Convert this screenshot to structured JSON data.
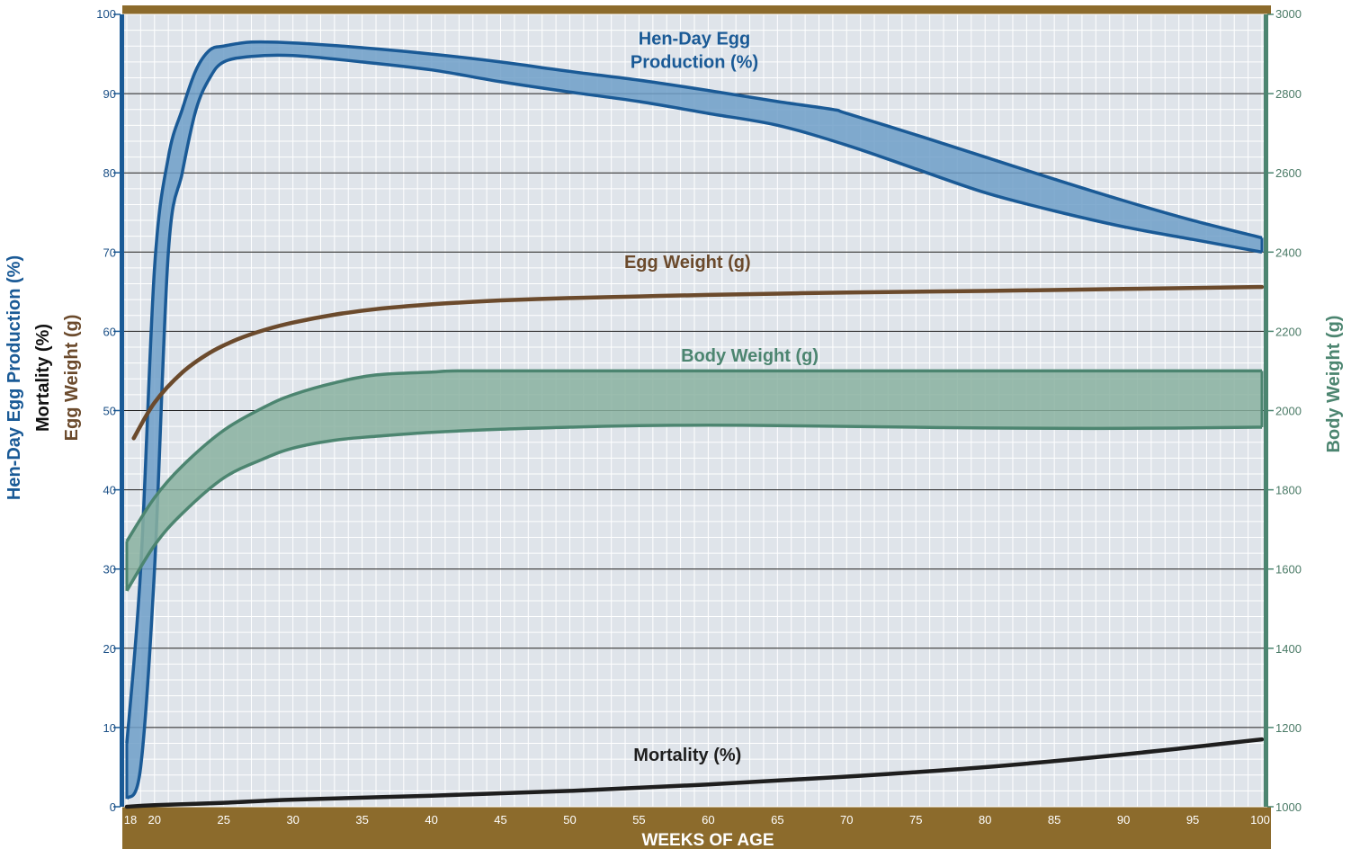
{
  "chart_data": {
    "type": "line",
    "x_range": [
      18,
      100
    ],
    "x_ticks": [
      18,
      20,
      25,
      30,
      35,
      40,
      45,
      50,
      55,
      60,
      65,
      70,
      75,
      80,
      85,
      90,
      95,
      100
    ],
    "xlabel": "WEEKS OF AGE",
    "y_left": {
      "range": [
        0,
        100
      ],
      "ticks": [
        0,
        10,
        20,
        30,
        40,
        50,
        60,
        70,
        80,
        90,
        100
      ],
      "labels": [
        "Hen-Day Egg Production (%)",
        "Mortality (%)",
        "Egg Weight (g)"
      ]
    },
    "y_right": {
      "range": [
        1000,
        3000
      ],
      "ticks": [
        1000,
        1200,
        1400,
        1600,
        1800,
        2000,
        2200,
        2400,
        2600,
        2800,
        3000
      ],
      "label": "Body Weight (g)"
    },
    "grid": true,
    "series": [
      {
        "name": "Hen-Day Egg Production (%)",
        "kind": "band",
        "axis": "left",
        "color": "#1a5a96",
        "fill": "#6f9fc8",
        "label_lines": [
          "Hen-Day Egg",
          "Production (%)"
        ],
        "upper": [
          [
            18,
            8
          ],
          [
            19,
            30
          ],
          [
            20,
            68
          ],
          [
            21,
            82
          ],
          [
            22,
            88
          ],
          [
            23,
            93
          ],
          [
            24,
            95.5
          ],
          [
            25,
            96
          ],
          [
            27,
            96.5
          ],
          [
            30,
            96.4
          ],
          [
            35,
            95.8
          ],
          [
            40,
            95
          ],
          [
            45,
            94
          ],
          [
            50,
            92.8
          ],
          [
            55,
            91.7
          ],
          [
            60,
            90.4
          ],
          [
            65,
            89
          ],
          [
            69,
            88
          ],
          [
            70,
            87.5
          ],
          [
            75,
            84.8
          ],
          [
            80,
            82
          ],
          [
            85,
            79.2
          ],
          [
            90,
            76.5
          ],
          [
            95,
            74
          ],
          [
            100,
            71.8
          ]
        ],
        "lower": [
          [
            18,
            1
          ],
          [
            19,
            5
          ],
          [
            20,
            30
          ],
          [
            21,
            70
          ],
          [
            22,
            80
          ],
          [
            23,
            88
          ],
          [
            24,
            92
          ],
          [
            25,
            94
          ],
          [
            27,
            94.7
          ],
          [
            30,
            94.8
          ],
          [
            35,
            94
          ],
          [
            40,
            93
          ],
          [
            45,
            91.5
          ],
          [
            50,
            90.2
          ],
          [
            55,
            89
          ],
          [
            60,
            87.5
          ],
          [
            65,
            86
          ],
          [
            70,
            83.5
          ],
          [
            75,
            80.5
          ],
          [
            80,
            77.5
          ],
          [
            85,
            75.2
          ],
          [
            90,
            73.2
          ],
          [
            95,
            71.6
          ],
          [
            100,
            70
          ]
        ]
      },
      {
        "name": "Egg Weight (g)",
        "kind": "line",
        "axis": "left",
        "color": "#6b4a2c",
        "label_lines": [
          "Egg Weight (g)"
        ],
        "points": [
          [
            18.5,
            46.5
          ],
          [
            20,
            51
          ],
          [
            22,
            54.8
          ],
          [
            24,
            57.3
          ],
          [
            26,
            59
          ],
          [
            28,
            60.2
          ],
          [
            30,
            61.1
          ],
          [
            33,
            62.1
          ],
          [
            36,
            62.8
          ],
          [
            40,
            63.4
          ],
          [
            45,
            63.9
          ],
          [
            50,
            64.2
          ],
          [
            55,
            64.4
          ],
          [
            60,
            64.6
          ],
          [
            70,
            64.9
          ],
          [
            80,
            65.1
          ],
          [
            90,
            65.35
          ],
          [
            100,
            65.6
          ]
        ]
      },
      {
        "name": "Body Weight (g)",
        "kind": "band",
        "axis": "right",
        "color": "#4c8570",
        "fill": "#89b2a0",
        "label_lines": [
          "Body Weight (g)"
        ],
        "upper": [
          [
            18,
            1670
          ],
          [
            20,
            1780
          ],
          [
            22,
            1860
          ],
          [
            25,
            1950
          ],
          [
            28,
            2010
          ],
          [
            30,
            2040
          ],
          [
            33,
            2070
          ],
          [
            36,
            2090
          ],
          [
            40,
            2097
          ],
          [
            42,
            2100
          ],
          [
            50,
            2100
          ],
          [
            60,
            2100
          ],
          [
            70,
            2100
          ],
          [
            80,
            2100
          ],
          [
            90,
            2100
          ],
          [
            100,
            2100
          ]
        ],
        "lower": [
          [
            18,
            1545
          ],
          [
            20,
            1660
          ],
          [
            22,
            1740
          ],
          [
            25,
            1830
          ],
          [
            28,
            1880
          ],
          [
            30,
            1905
          ],
          [
            33,
            1925
          ],
          [
            36,
            1935
          ],
          [
            40,
            1945
          ],
          [
            45,
            1953
          ],
          [
            50,
            1958
          ],
          [
            55,
            1962
          ],
          [
            60,
            1963
          ],
          [
            65,
            1962
          ],
          [
            70,
            1960
          ],
          [
            80,
            1956
          ],
          [
            90,
            1955
          ],
          [
            100,
            1958
          ]
        ]
      },
      {
        "name": "Mortality (%)",
        "kind": "line",
        "axis": "left",
        "color": "#1e1e1e",
        "label_lines": [
          "Mortality (%)"
        ],
        "points": [
          [
            18,
            0
          ],
          [
            20,
            0.2
          ],
          [
            25,
            0.5
          ],
          [
            30,
            0.9
          ],
          [
            40,
            1.4
          ],
          [
            50,
            2.0
          ],
          [
            60,
            2.8
          ],
          [
            70,
            3.8
          ],
          [
            80,
            5.0
          ],
          [
            90,
            6.6
          ],
          [
            100,
            8.5
          ]
        ]
      }
    ]
  },
  "colors": {
    "plot_background": "#dfe4ea",
    "frame": "#8c6b2c",
    "left_axis": "#1a5a96",
    "right_axis": "#4c8570",
    "gridline_major": "#1a1a1a",
    "gridline_minor": "#ffffff"
  }
}
